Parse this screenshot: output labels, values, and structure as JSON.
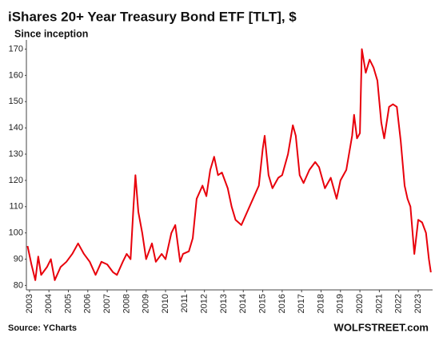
{
  "chart_data": {
    "type": "line",
    "title": "iShares 20+ Year Treasury Bond ETF [TLT], $",
    "subtitle": "Since inception",
    "source": "Source: YCharts",
    "credit": "WOLFSTREET.com",
    "x": [
      2002.9,
      2003.1,
      2003.3,
      2003.45,
      2003.6,
      2003.9,
      2004.1,
      2004.3,
      2004.6,
      2004.9,
      2005.2,
      2005.5,
      2005.8,
      2006.1,
      2006.4,
      2006.7,
      2007.0,
      2007.3,
      2007.5,
      2007.8,
      2008.0,
      2008.2,
      2008.35,
      2008.45,
      2008.6,
      2008.8,
      2009.0,
      2009.3,
      2009.5,
      2009.8,
      2010.0,
      2010.3,
      2010.5,
      2010.75,
      2010.9,
      2011.2,
      2011.4,
      2011.6,
      2011.9,
      2012.1,
      2012.3,
      2012.5,
      2012.7,
      2012.9,
      2013.2,
      2013.4,
      2013.6,
      2013.9,
      2014.2,
      2014.5,
      2014.8,
      2015.0,
      2015.1,
      2015.3,
      2015.5,
      2015.8,
      2016.0,
      2016.3,
      2016.55,
      2016.7,
      2016.9,
      2017.1,
      2017.4,
      2017.7,
      2017.9,
      2018.2,
      2018.5,
      2018.8,
      2019.0,
      2019.3,
      2019.6,
      2019.7,
      2019.85,
      2020.0,
      2020.1,
      2020.3,
      2020.5,
      2020.7,
      2020.9,
      2021.1,
      2021.25,
      2021.5,
      2021.7,
      2021.9,
      2022.1,
      2022.3,
      2022.45,
      2022.6,
      2022.8,
      2023.0,
      2023.2,
      2023.4,
      2023.55,
      2023.65
    ],
    "series": [
      {
        "name": "TLT",
        "color": "#e8000b",
        "values": [
          95,
          88,
          82,
          91,
          84,
          87,
          90,
          82,
          87,
          89,
          92,
          96,
          92,
          89,
          84,
          89,
          88,
          85,
          84,
          89,
          92,
          90,
          110,
          122,
          108,
          100,
          90,
          96,
          89,
          92,
          90,
          100,
          103,
          89,
          92,
          93,
          98,
          113,
          118,
          114,
          124,
          129,
          122,
          123,
          117,
          110,
          105,
          103,
          108,
          113,
          118,
          132,
          137,
          122,
          117,
          121,
          122,
          130,
          141,
          137,
          122,
          119,
          124,
          127,
          125,
          117,
          121,
          113,
          120,
          124,
          137,
          145,
          136,
          138,
          170,
          161,
          166,
          163,
          158,
          142,
          136,
          148,
          149,
          148,
          135,
          118,
          113,
          110,
          92,
          105,
          104,
          100,
          90,
          85
        ]
      }
    ],
    "xlim": [
      2002.84,
      2023.74
    ],
    "ylim": [
      78.3,
      173.5
    ],
    "xticks": [
      2003,
      2004,
      2005,
      2006,
      2007,
      2008,
      2009,
      2010,
      2011,
      2012,
      2013,
      2014,
      2015,
      2016,
      2017,
      2018,
      2019,
      2020,
      2021,
      2022,
      2023
    ],
    "yticks": [
      80,
      90,
      100,
      110,
      120,
      130,
      140,
      150,
      160,
      170
    ],
    "grid": false
  }
}
